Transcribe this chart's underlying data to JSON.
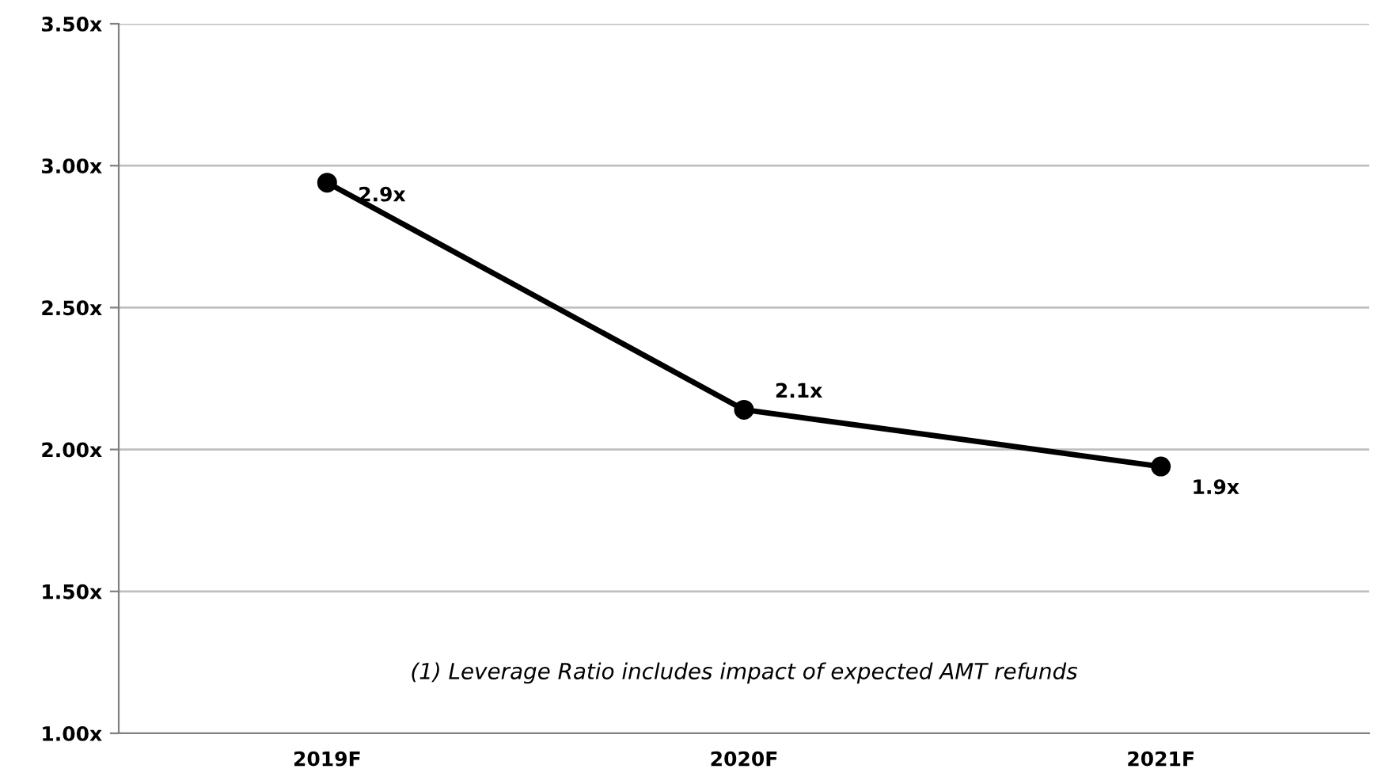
{
  "chart_data": {
    "type": "line",
    "categories": [
      "2019F",
      "2020F",
      "2021F"
    ],
    "series": [
      {
        "color": "#000000",
        "values": [
          2.94,
          2.14,
          1.94
        ],
        "value_labels": [
          "2.9x",
          "2.1x",
          "1.9x"
        ]
      }
    ],
    "ylim": [
      1.0,
      3.5
    ],
    "yticks": [
      {
        "value": 1.0,
        "label": "1.00x"
      },
      {
        "value": 1.5,
        "label": "1.50x"
      },
      {
        "value": 2.0,
        "label": "2.00x"
      },
      {
        "value": 2.5,
        "label": "2.50x"
      },
      {
        "value": 3.0,
        "label": "3.00x"
      },
      {
        "value": 3.5,
        "label": "3.50x"
      }
    ],
    "grid": "y",
    "marker": "circle",
    "line_style": "solid",
    "annotations": [
      "(1) Leverage Ratio includes impact of expected AMT refunds"
    ]
  }
}
